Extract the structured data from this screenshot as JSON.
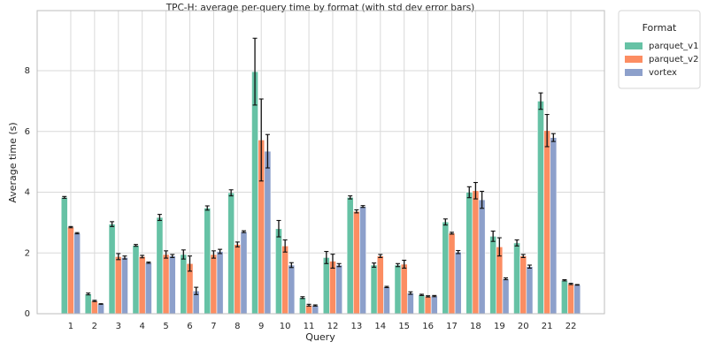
{
  "chart_data": {
    "type": "bar",
    "title": "TPC-H: average per-query time by format (with std dev error bars)",
    "xlabel": "Query",
    "ylabel": "Average time (s)",
    "ylim": [
      0,
      9.98
    ],
    "yticks": [
      0,
      2,
      4,
      6,
      8
    ],
    "grid": true,
    "legend": {
      "title": "Format",
      "placement": "outside-top-right"
    },
    "categories": [
      "1",
      "2",
      "3",
      "4",
      "5",
      "6",
      "7",
      "8",
      "9",
      "10",
      "11",
      "12",
      "13",
      "14",
      "15",
      "16",
      "17",
      "18",
      "19",
      "20",
      "21",
      "22"
    ],
    "series": [
      {
        "name": "parquet_v1",
        "color": "#66c2a5",
        "values": [
          3.83,
          0.65,
          2.95,
          2.25,
          3.17,
          1.95,
          3.48,
          3.98,
          7.97,
          2.8,
          0.53,
          1.85,
          3.83,
          1.6,
          1.6,
          0.62,
          3.02,
          4.0,
          2.55,
          2.33,
          7.0,
          1.1
        ],
        "errors": [
          0.03,
          0.03,
          0.08,
          0.03,
          0.1,
          0.15,
          0.07,
          0.1,
          1.1,
          0.27,
          0.03,
          0.2,
          0.05,
          0.07,
          0.05,
          0.02,
          0.1,
          0.18,
          0.17,
          0.1,
          0.27,
          0.02
        ]
      },
      {
        "name": "parquet_v2",
        "color": "#fc8d62",
        "values": [
          2.85,
          0.42,
          1.88,
          1.88,
          1.95,
          1.65,
          1.95,
          2.28,
          5.72,
          2.23,
          0.28,
          1.73,
          3.37,
          1.9,
          1.63,
          0.57,
          2.65,
          4.05,
          2.2,
          1.9,
          6.03,
          0.98
        ],
        "errors": [
          0.02,
          0.02,
          0.1,
          0.04,
          0.12,
          0.25,
          0.12,
          0.08,
          1.35,
          0.2,
          0.03,
          0.23,
          0.05,
          0.05,
          0.13,
          0.02,
          0.03,
          0.27,
          0.3,
          0.05,
          0.53,
          0.02
        ]
      },
      {
        "name": "vortex",
        "color": "#8da0cb",
        "values": [
          2.65,
          0.32,
          1.85,
          1.68,
          1.9,
          0.75,
          2.05,
          2.7,
          5.35,
          1.6,
          0.27,
          1.6,
          3.53,
          0.88,
          0.68,
          0.58,
          2.03,
          3.75,
          1.15,
          1.55,
          5.8,
          0.95
        ],
        "errors": [
          0.02,
          0.01,
          0.05,
          0.02,
          0.05,
          0.12,
          0.07,
          0.03,
          0.55,
          0.08,
          0.02,
          0.05,
          0.03,
          0.02,
          0.04,
          0.02,
          0.05,
          0.28,
          0.03,
          0.05,
          0.13,
          0.01
        ]
      }
    ]
  }
}
